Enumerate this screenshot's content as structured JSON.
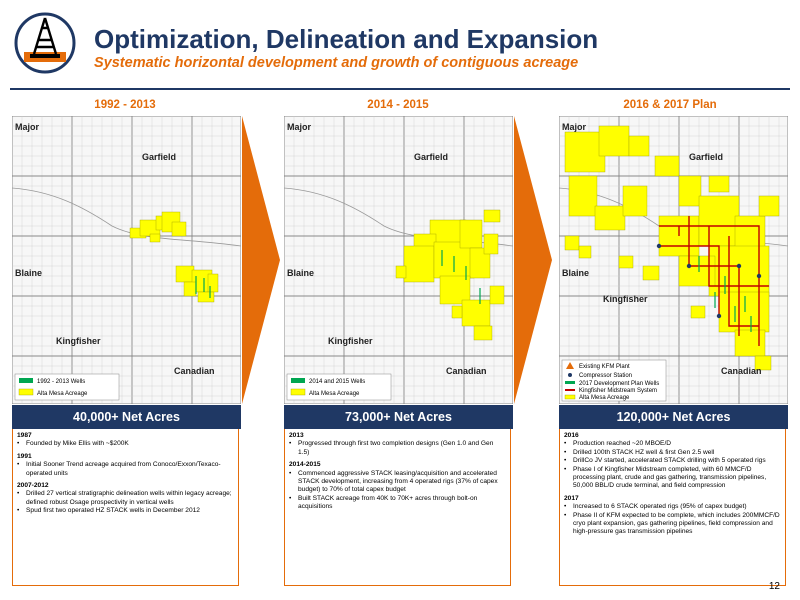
{
  "header": {
    "title": "Optimization, Delineation and Expansion",
    "subtitle": "Systematic horizontal development and growth of contiguous acreage"
  },
  "colors": {
    "navy": "#1f3864",
    "orange": "#e46c0a",
    "acreage": "#ffff00",
    "wells": "#00a651",
    "pipeline": "#c00000"
  },
  "panels": [
    {
      "period": "1992 - 2013",
      "map_labels": {
        "major": "Major",
        "garfield": "Garfield",
        "blaine": "Blaine",
        "kingfisher": "Kingfisher",
        "canadian": "Canadian"
      },
      "legend": [
        {
          "label": "1992 - 2013 Wells",
          "icon": "green-line"
        },
        {
          "label": "Alta Mesa Acreage",
          "icon": "yellow-swatch"
        }
      ],
      "acres": "40,000+ Net Acres",
      "notes": [
        {
          "year": "1987",
          "bullets": [
            "Founded by Mike Ellis with ~$200K"
          ]
        },
        {
          "year": "1991",
          "bullets": [
            "Initial Sooner Trend acreage acquired from Conoco/Exxon/Texaco-operated units"
          ]
        },
        {
          "year": "2007-2012",
          "bullets": [
            "Drilled 27 vertical stratigraphic delineation wells within legacy acreage; defined robust Osage prospectivity in vertical wells",
            "Spud first two operated HZ STACK wells in December 2012"
          ]
        }
      ]
    },
    {
      "period": "2014 - 2015",
      "map_labels": {
        "major": "Major",
        "garfield": "Garfield",
        "blaine": "Blaine",
        "kingfisher": "Kingfisher",
        "canadian": "Canadian"
      },
      "legend": [
        {
          "label": "2014 and 2015 Wells",
          "icon": "green-line"
        },
        {
          "label": "Alta Mesa Acreage",
          "icon": "yellow-swatch"
        }
      ],
      "acres": "73,000+ Net Acres",
      "notes": [
        {
          "year": "2013",
          "bullets": [
            "Progressed through first two completion designs (Gen 1.0 and Gen 1.5)"
          ]
        },
        {
          "year": "2014-2015",
          "bullets": [
            "Commenced aggressive STACK leasing/acquisition and accelerated STACK development, increasing from 4 operated rigs (37% of capex budget) to 70% of total capex budget",
            "Built STACK acreage from 40K to 70K+ acres through bolt-on acquisitions"
          ]
        }
      ]
    },
    {
      "period": "2016 & 2017 Plan",
      "map_labels": {
        "major": "Major",
        "garfield": "Garfield",
        "blaine": "Blaine",
        "kingfisher": "Kingfisher",
        "canadian": "Canadian"
      },
      "legend": [
        {
          "label": "Existing KFM Plant",
          "icon": "orange-triangle"
        },
        {
          "label": "Compressor Station",
          "icon": "green-dot"
        },
        {
          "label": "2017 Development Plan Wells",
          "icon": "green-line"
        },
        {
          "label": "Kingfisher Midstream System",
          "icon": "red-line"
        },
        {
          "label": "Alta Mesa Acreage",
          "icon": "yellow-swatch"
        }
      ],
      "acres": "120,000+ Net Acres",
      "notes": [
        {
          "year": "2016",
          "bullets": [
            "Production reached ~20 MBOE/D",
            "Drilled 100th STACK HZ well & first Gen 2.5 well",
            "DrillCo JV started, accelerated STACK drilling with 5 operated rigs",
            "Phase I of Kingfisher Midstream completed, with 60 MMCF/D processing plant, crude and gas gathering, transmission pipelines, 50,000 BBL/D crude terminal, and field compression"
          ]
        },
        {
          "year": "2017",
          "bullets": [
            "Increased to 6 STACK operated rigs (95% of capex budget)",
            "Phase II of KFM expected to be complete, which includes 200MMCF/D cryo plant expansion, gas gathering pipelines, field compression and high-pressure gas transmission pipelines"
          ]
        }
      ]
    }
  ],
  "page_number": "12"
}
